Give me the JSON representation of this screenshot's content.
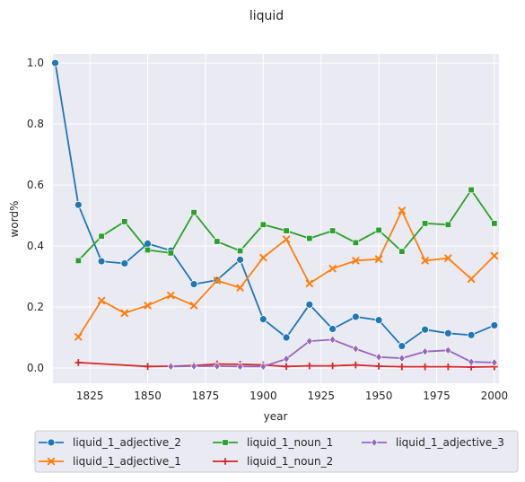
{
  "chart_data": {
    "type": "line",
    "title": "liquid",
    "xlabel": "year",
    "ylabel": "word%",
    "xlim": [
      1809,
      2002
    ],
    "ylim": [
      -0.05,
      1.03
    ],
    "xticks": [
      1825,
      1850,
      1875,
      1900,
      1925,
      1950,
      1975,
      2000
    ],
    "yticks": [
      0.0,
      0.2,
      0.4,
      0.6,
      0.8,
      1.0
    ],
    "xtick_labels": [
      "1825",
      "1850",
      "1875",
      "1900",
      "1925",
      "1950",
      "1975",
      "2000"
    ],
    "ytick_labels": [
      "0.0",
      "0.2",
      "0.4",
      "0.6",
      "0.8",
      "1.0"
    ],
    "grid": true,
    "legend_placement": "bottom-center, below axes, 3 columns",
    "background": "#eaeaf2",
    "series": [
      {
        "name": "liquid_1_adjective_2",
        "color": "#1f77b4",
        "marker": "circle",
        "x": [
          1810,
          1820,
          1830,
          1840,
          1850,
          1860,
          1870,
          1880,
          1890,
          1900,
          1910,
          1920,
          1930,
          1940,
          1950,
          1960,
          1970,
          1980,
          1990,
          2000
        ],
        "y": [
          1.0,
          0.535,
          0.35,
          0.343,
          0.408,
          0.385,
          0.275,
          0.288,
          0.355,
          0.16,
          0.1,
          0.208,
          0.128,
          0.168,
          0.157,
          0.072,
          0.126,
          0.114,
          0.108,
          0.14
        ]
      },
      {
        "name": "liquid_1_adjective_1",
        "color": "#ff7f0e",
        "marker": "x",
        "x": [
          1820,
          1830,
          1840,
          1850,
          1860,
          1870,
          1880,
          1890,
          1900,
          1910,
          1920,
          1930,
          1940,
          1950,
          1960,
          1970,
          1980,
          1990,
          2000
        ],
        "y": [
          0.102,
          0.221,
          0.18,
          0.205,
          0.238,
          0.205,
          0.287,
          0.263,
          0.362,
          0.422,
          0.277,
          0.326,
          0.352,
          0.357,
          0.516,
          0.352,
          0.36,
          0.292,
          0.368
        ]
      },
      {
        "name": "liquid_1_noun_1",
        "color": "#2ca02c",
        "marker": "square",
        "x": [
          1820,
          1830,
          1840,
          1850,
          1860,
          1870,
          1880,
          1890,
          1900,
          1910,
          1920,
          1930,
          1940,
          1950,
          1960,
          1970,
          1980,
          1990,
          2000
        ],
        "y": [
          0.352,
          0.432,
          0.48,
          0.387,
          0.377,
          0.51,
          0.415,
          0.384,
          0.47,
          0.45,
          0.425,
          0.45,
          0.411,
          0.452,
          0.382,
          0.474,
          0.47,
          0.584,
          0.474
        ]
      },
      {
        "name": "liquid_1_noun_2",
        "color": "#d62728",
        "marker": "plus",
        "x": [
          1820,
          1850,
          1860,
          1870,
          1880,
          1890,
          1900,
          1910,
          1920,
          1930,
          1940,
          1950,
          1960,
          1970,
          1980,
          1990,
          2000
        ],
        "y": [
          0.018,
          0.005,
          0.006,
          0.008,
          0.013,
          0.012,
          0.01,
          0.005,
          0.007,
          0.007,
          0.01,
          0.006,
          0.004,
          0.004,
          0.004,
          0.003,
          0.004
        ]
      },
      {
        "name": "liquid_1_adjective_3",
        "color": "#9467bd",
        "marker": "diamond",
        "x": [
          1860,
          1870,
          1880,
          1890,
          1900,
          1910,
          1920,
          1930,
          1940,
          1950,
          1960,
          1970,
          1980,
          1990,
          2000
        ],
        "y": [
          0.005,
          0.006,
          0.006,
          0.005,
          0.005,
          0.03,
          0.088,
          0.093,
          0.063,
          0.036,
          0.032,
          0.054,
          0.058,
          0.02,
          0.018
        ]
      }
    ]
  }
}
